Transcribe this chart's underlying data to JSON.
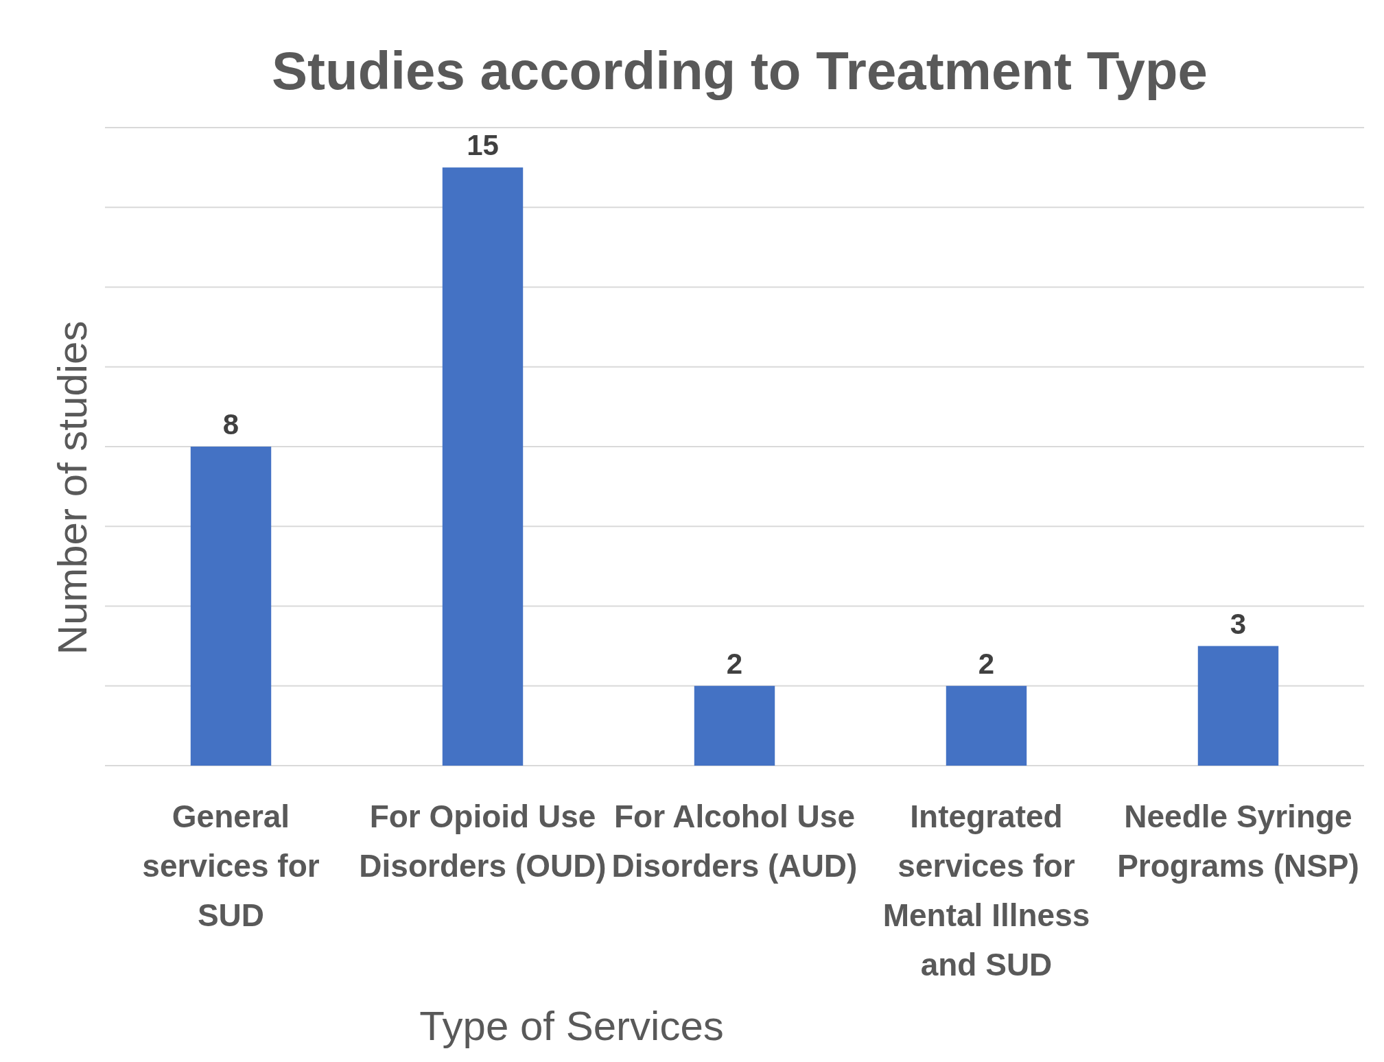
{
  "chart_data": {
    "type": "bar",
    "title": "Studies according to Treatment Type",
    "xlabel": "Type of Services",
    "ylabel": "Number of studies",
    "categories": [
      "General services for SUD",
      "For Opioid Use Disorders (OUD)",
      "For Alcohol Use Disorders (AUD)",
      "Integrated services for Mental Illness and SUD",
      "Needle Syringe Programs (NSP)"
    ],
    "values": [
      8,
      15,
      2,
      2,
      3
    ],
    "color": "#4472c4",
    "data_labels": true,
    "ylim": [
      0,
      16
    ],
    "yticks": [
      {
        "value": 0,
        "label": null
      },
      {
        "value": 2,
        "label": null
      },
      {
        "value": 4,
        "label": null
      },
      {
        "value": 6,
        "label": null
      },
      {
        "value": 8,
        "label": null
      },
      {
        "value": 10,
        "label": null
      },
      {
        "value": 12,
        "label": null
      },
      {
        "value": 14,
        "label": null
      },
      {
        "value": 16,
        "label": null
      }
    ],
    "grid": "y",
    "tick_labels": "x"
  }
}
